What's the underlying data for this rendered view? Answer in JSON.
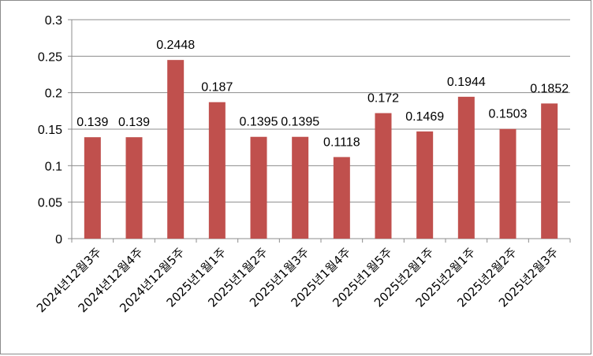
{
  "chart_data": {
    "type": "bar",
    "categories": [
      "2024년12월3주",
      "2024년12월4주",
      "2024년12월5주",
      "2025년1월1주",
      "2025년1월2주",
      "2025년1월3주",
      "2025년1월4주",
      "2025년1월5주",
      "2025년2월1주",
      "2025년2월1주",
      "2025년2월2주",
      "2025년2월3주"
    ],
    "values": [
      0.139,
      0.139,
      0.2448,
      0.187,
      0.1395,
      0.1395,
      0.1118,
      0.172,
      0.1469,
      0.1944,
      0.1503,
      0.1852
    ],
    "value_labels": [
      "0.139",
      "0.139",
      "0.2448",
      "0.187",
      "0.1395",
      "0.1395",
      "0.1118",
      "0.172",
      "0.1469",
      "0.1944",
      "0.1503",
      "0.1852"
    ],
    "ylim": [
      0,
      0.3
    ],
    "yticks": [
      0,
      0.05,
      0.1,
      0.15,
      0.2,
      0.25,
      0.3
    ],
    "ytick_labels": [
      "0",
      "0.05",
      "0.1",
      "0.15",
      "0.2",
      "0.25",
      "0.3"
    ],
    "grid": true,
    "legend": "none",
    "bar_color": "#c0504d"
  }
}
